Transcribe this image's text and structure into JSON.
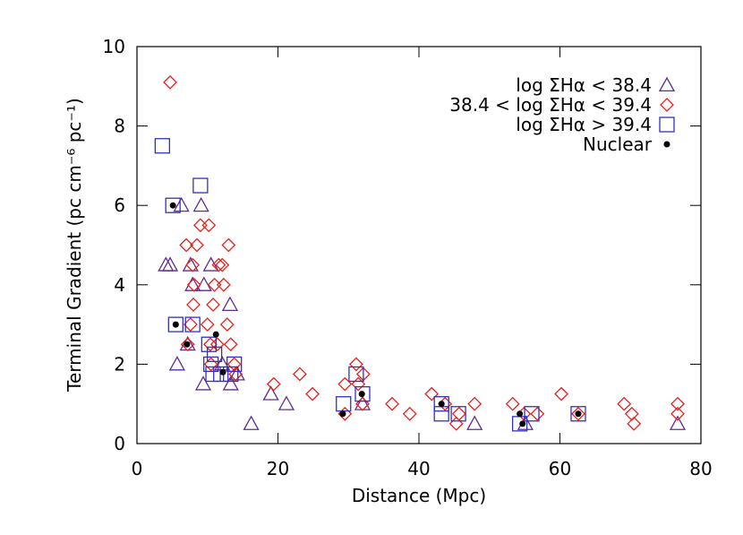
{
  "chart_data": {
    "type": "scatter",
    "xlabel": "Distance (Mpc)",
    "ylabel": "Terminal Gradient (pc cm⁻⁶ pc⁻¹)",
    "xlim": [
      0,
      80
    ],
    "ylim": [
      0,
      10
    ],
    "xticks": [
      0,
      20,
      40,
      60,
      80
    ],
    "yticks": [
      0,
      2,
      4,
      6,
      8,
      10
    ],
    "legend": "upper right",
    "series": [
      {
        "name": "log ΣHα < 38.4",
        "color": "#5e2d91",
        "marker": "triangle",
        "x": [
          4.1,
          4.7,
          5.7,
          6.3,
          7.6,
          7.2,
          7.9,
          9.1,
          9.4,
          9.5,
          10.5,
          12.1,
          13.2,
          13.3,
          14.2,
          16.2,
          19.0,
          21.2,
          32.0,
          47.9,
          55.1,
          76.7
        ],
        "values": [
          4.5,
          4.5,
          2.0,
          6.0,
          4.5,
          2.5,
          4.0,
          6.0,
          1.5,
          4.0,
          4.5,
          2.0,
          3.5,
          1.5,
          1.75,
          0.5,
          1.25,
          1.0,
          1.0,
          0.5,
          0.5,
          0.5
        ]
      },
      {
        "name": "38.4 < log ΣHα < 39.4",
        "color": "#e8201c",
        "marker": "diamond",
        "x": [
          4.7,
          7.0,
          7.9,
          8.5,
          8.1,
          8.0,
          7.6,
          7.2,
          9.0,
          10.2,
          10.0,
          10.4,
          10.8,
          11.0,
          11.6,
          12.1,
          12.3,
          12.8,
          13.0,
          13.3,
          13.8,
          14.0,
          10.5,
          11.4,
          19.4,
          23.1,
          24.9,
          29.5,
          29.5,
          31.1,
          31.4,
          32.1,
          32.0,
          36.2,
          38.7,
          41.8,
          43.7,
          45.3,
          45.7,
          47.9,
          53.3,
          54.9,
          56.8,
          60.2,
          62.6,
          69.1,
          70.2,
          70.5,
          76.7,
          76.7
        ],
        "values": [
          9.1,
          5.0,
          4.5,
          5.0,
          4.0,
          3.5,
          3.0,
          2.5,
          5.5,
          5.5,
          3.0,
          2.5,
          3.5,
          4.0,
          4.5,
          4.5,
          4.0,
          3.0,
          5.0,
          2.5,
          2.0,
          1.75,
          2.0,
          2.5,
          1.5,
          1.75,
          1.25,
          0.75,
          1.5,
          2.0,
          1.5,
          1.75,
          1.0,
          1.0,
          0.75,
          1.25,
          1.0,
          0.5,
          0.75,
          1.0,
          1.0,
          0.75,
          0.75,
          1.25,
          0.75,
          1.0,
          0.75,
          0.5,
          1.0,
          0.75
        ]
      },
      {
        "name": "log ΣHα > 39.4",
        "color": "#3030c8",
        "marker": "square",
        "x": [
          3.6,
          5.1,
          9.0,
          5.5,
          7.9,
          10.2,
          10.5,
          11.0,
          10.8,
          11.9,
          13.3,
          13.8,
          29.3,
          31.1,
          32.0,
          43.2,
          43.2,
          45.6,
          54.3,
          56.0,
          62.6
        ],
        "values": [
          7.5,
          6.0,
          6.5,
          3.0,
          3.0,
          2.5,
          2.0,
          2.25,
          1.75,
          1.75,
          1.75,
          2.0,
          1.0,
          1.75,
          1.25,
          1.0,
          0.75,
          0.75,
          0.5,
          0.75,
          0.75
        ]
      },
      {
        "name": "Nuclear",
        "color": "#000000",
        "marker": "dot",
        "x": [
          5.1,
          5.5,
          7.1,
          11.2,
          12.2,
          29.2,
          31.9,
          43.2,
          54.3,
          54.7,
          62.6
        ],
        "values": [
          6.0,
          3.0,
          2.5,
          2.75,
          1.8,
          0.75,
          1.25,
          1.0,
          0.75,
          0.5,
          0.75
        ]
      }
    ]
  }
}
